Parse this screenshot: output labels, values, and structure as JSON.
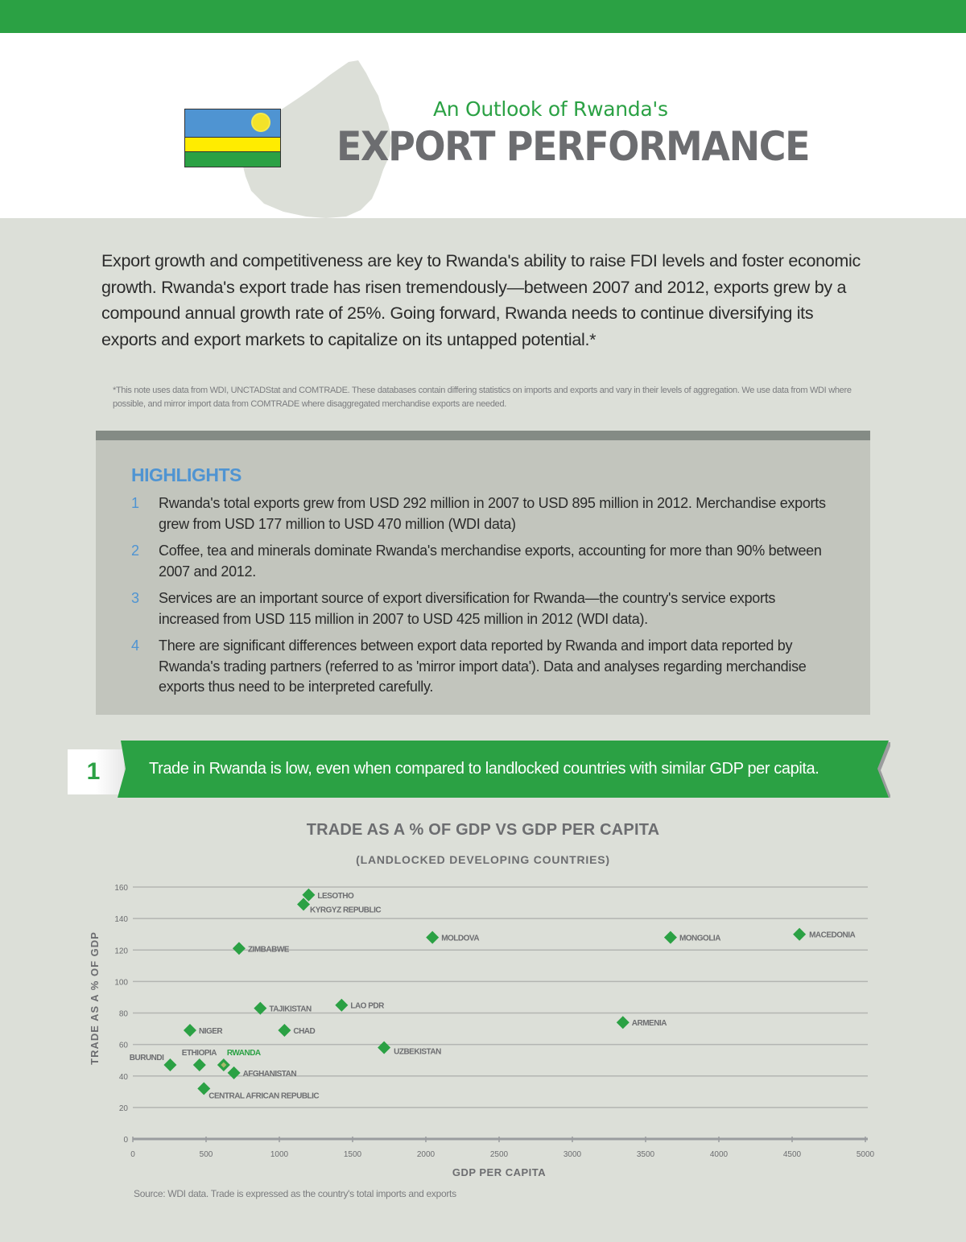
{
  "header": {
    "subtitle": "An Outlook of Rwanda's",
    "title": "EXPORT PERFORMANCE",
    "colors": {
      "green": "#2ba144",
      "gray": "#6c6d70",
      "flag_blue": "#4f94d2",
      "flag_yellow": "#ffec00"
    }
  },
  "intro": {
    "paragraph": "Export growth and competitiveness are key to Rwanda's ability to raise FDI levels and foster economic growth. Rwanda's export trade has risen tremendously—between 2007 and 2012, exports grew by a compound annual growth rate of 25%. Going forward, Rwanda needs to continue diversifying its exports and export markets to capitalize on its untapped potential.*",
    "footnote": "*This note uses data from WDI, UNCTADStat and COMTRADE. These databases contain differing statistics on imports and exports and vary in their levels of aggregation. We use data from WDI where possible, and mirror import data from COMTRADE where disaggregated merchandise exports are needed."
  },
  "highlights": {
    "title": "HIGHLIGHTS",
    "items": [
      {
        "num": "1",
        "text": "Rwanda's total exports grew from USD 292 million in 2007 to USD 895 million in 2012. Merchandise exports grew from USD 177 million to USD 470 million (WDI data)"
      },
      {
        "num": "2",
        "text": "Coffee, tea and minerals dominate Rwanda's merchandise exports, accounting for more than 90% between 2007 and 2012."
      },
      {
        "num": "3",
        "text": "Services are an important source of export diversification for Rwanda—the country's service exports increased from USD 115 million in 2007 to USD 425 million in 2012 (WDI data)."
      },
      {
        "num": "4",
        "text": "There are significant differences between export data reported by Rwanda and import data reported by Rwanda's trading partners (referred to as 'mirror import data'). Data and analyses regarding merchandise exports thus need to be interpreted carefully."
      }
    ]
  },
  "section1": {
    "number": "1",
    "banner_text": "Trade in Rwanda is low, even when compared to landlocked countries with similar GDP per capita."
  },
  "chart": {
    "title": "TRADE AS A % OF GDP VS GDP PER CAPITA",
    "subtitle": "(LANDLOCKED DEVELOPING COUNTRIES)",
    "source": "Source: WDI data. Trade is expressed as the country's total imports and exports"
  },
  "chart_data": {
    "type": "scatter",
    "title": "TRADE AS A % OF GDP VS GDP PER CAPITA",
    "subtitle": "(LANDLOCKED DEVELOPING COUNTRIES)",
    "xlabel": "GDP PER CAPITA",
    "ylabel": "TRADE AS A % OF GDP",
    "xlim": [
      0,
      5000
    ],
    "ylim": [
      0,
      160
    ],
    "xticks": [
      0,
      500,
      1000,
      1500,
      2000,
      2500,
      3000,
      3500,
      4000,
      4500,
      5000
    ],
    "yticks": [
      0,
      20,
      40,
      60,
      80,
      100,
      120,
      140,
      160
    ],
    "grid": "horizontal",
    "highlight": "RWANDA",
    "points": [
      {
        "label": "LESOTHO",
        "x": 1200,
        "y": 155
      },
      {
        "label": "KYRGYZ REPUBLIC",
        "x": 1165,
        "y": 149
      },
      {
        "label": "ZIMBABWE",
        "x": 725,
        "y": 121
      },
      {
        "label": "MOLDOVA",
        "x": 2045,
        "y": 128
      },
      {
        "label": "MONGOLIA",
        "x": 3670,
        "y": 128
      },
      {
        "label": "MACEDONIA",
        "x": 4550,
        "y": 130
      },
      {
        "label": "TAJIKISTAN",
        "x": 870,
        "y": 83
      },
      {
        "label": "LAO PDR",
        "x": 1425,
        "y": 85
      },
      {
        "label": "ARMENIA",
        "x": 3345,
        "y": 74
      },
      {
        "label": "NIGER",
        "x": 390,
        "y": 69
      },
      {
        "label": "CHAD",
        "x": 1035,
        "y": 69
      },
      {
        "label": "UZBEKISTAN",
        "x": 1715,
        "y": 58
      },
      {
        "label": "BURUNDI",
        "x": 255,
        "y": 47
      },
      {
        "label": "ETHIOPIA",
        "x": 455,
        "y": 47
      },
      {
        "label": "RWANDA",
        "x": 620,
        "y": 47
      },
      {
        "label": "AFGHANISTAN",
        "x": 690,
        "y": 42
      },
      {
        "label": "CENTRAL AFRICAN REPUBLIC",
        "x": 485,
        "y": 32
      }
    ],
    "source": "Source: WDI data. Trade is expressed as the country's total imports and exports"
  }
}
